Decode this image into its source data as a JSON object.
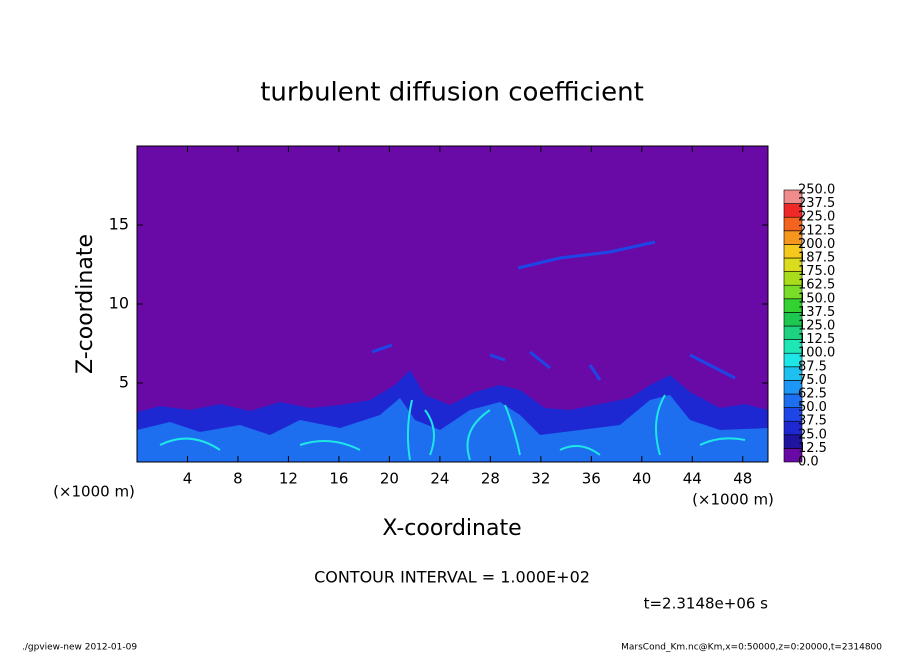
{
  "chart_data": {
    "type": "contour",
    "title": "turbulent diffusion coefficient",
    "xlabel": "X-coordinate",
    "ylabel": "Z-coordinate",
    "x_unit": "(×1000 m)",
    "xlim": [
      0,
      50
    ],
    "ylim": [
      0,
      20
    ],
    "xticks": [
      4,
      8,
      12,
      16,
      20,
      24,
      28,
      32,
      36,
      40,
      44,
      48
    ],
    "yticks": [
      5,
      10,
      15
    ],
    "levels": [
      {
        "value": 0,
        "label": "0.0"
      },
      {
        "value": 12.5,
        "label": "12.5"
      },
      {
        "value": 25,
        "label": "25.0"
      },
      {
        "value": 37.5,
        "label": "37.5"
      },
      {
        "value": 50,
        "label": "50.0"
      },
      {
        "value": 62.5,
        "label": "62.5"
      },
      {
        "value": 75,
        "label": "75.0"
      },
      {
        "value": 87.5,
        "label": "87.5"
      },
      {
        "value": 100,
        "label": "100.0"
      },
      {
        "value": 112.5,
        "label": "112.5"
      },
      {
        "value": 125,
        "label": "125.0"
      },
      {
        "value": 137.5,
        "label": "137.5"
      },
      {
        "value": 150,
        "label": "150.0"
      },
      {
        "value": 162.5,
        "label": "162.5"
      },
      {
        "value": 175,
        "label": "175.0"
      },
      {
        "value": 187.5,
        "label": "187.5"
      },
      {
        "value": 200,
        "label": "200.0"
      },
      {
        "value": 212.5,
        "label": "212.5"
      },
      {
        "value": 225,
        "label": "225.0"
      },
      {
        "value": 237.5,
        "label": "237.5"
      },
      {
        "value": 250,
        "label": "250.0"
      }
    ],
    "colors": [
      "#6a0aa6",
      "#1e14a0",
      "#1e28d2",
      "#1e46e6",
      "#1e6ef0",
      "#1e96f5",
      "#1ec0f0",
      "#1ee6e6",
      "#1ee6b4",
      "#1ed282",
      "#1ec850",
      "#32d232",
      "#78dc28",
      "#aadc1e",
      "#dcdc1e",
      "#f5c81e",
      "#f5961e",
      "#f5641e",
      "#f02828",
      "#f08c8c"
    ],
    "contour_interval": "CONTOUR INTERVAL = 1.000E+02",
    "time_label": "t=2.3148e+06 s",
    "footer_left": "./gpview-new  2012-01-09",
    "footer_right": "MarsCond_Km.nc@Km,x=0:50000,z=0:20000,t=2314800"
  }
}
